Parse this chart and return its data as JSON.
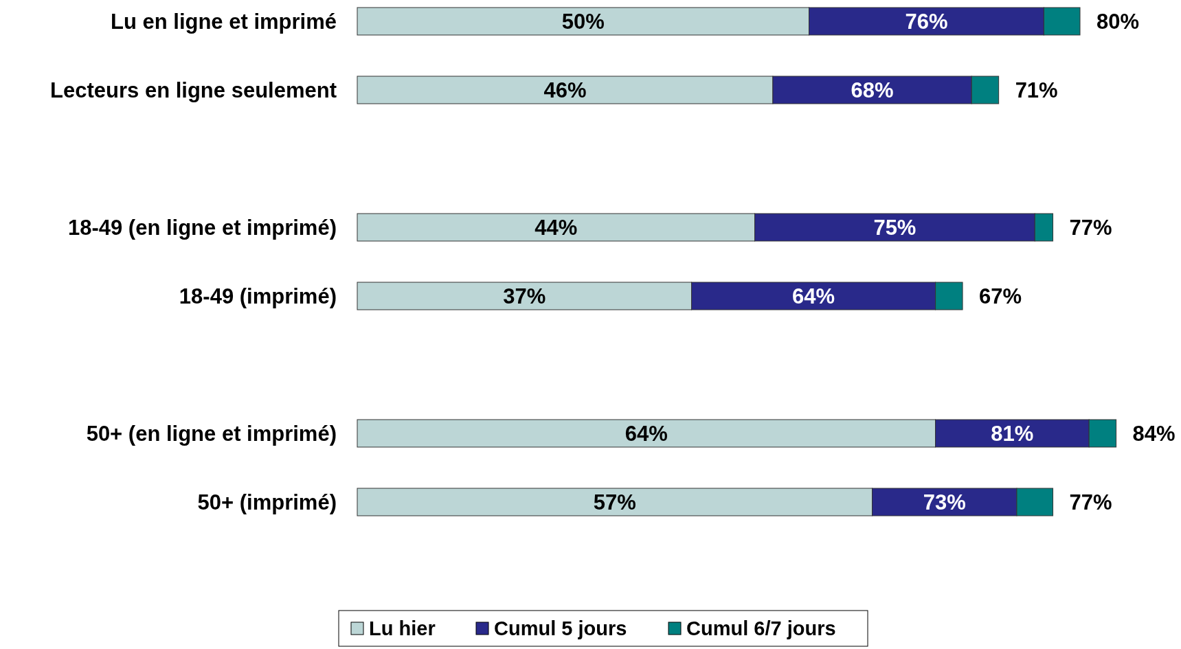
{
  "chart_data": {
    "type": "bar",
    "orientation": "horizontal",
    "stacked": true,
    "legend": "bottom",
    "categories": [
      "Lu en ligne et imprimé",
      "Lecteurs en ligne seulement",
      null,
      "18-49 (en ligne et imprimé)",
      "18-49 (imprimé)",
      null,
      "50+ (en ligne et imprimé)",
      "50+ (imprimé)"
    ],
    "series": [
      {
        "name": "Lu hier",
        "color": "#bcd6d6",
        "values": [
          50,
          46,
          null,
          44,
          37,
          null,
          64,
          57
        ],
        "value_labels": [
          "50%",
          "46%",
          null,
          "44%",
          "37%",
          null,
          "64%",
          "57%"
        ]
      },
      {
        "name": "Cumul 5 jours",
        "color": "#29298a",
        "values": [
          26,
          22,
          null,
          31,
          27,
          null,
          17,
          16
        ]
      },
      {
        "name": "Cumul 6/7 jours",
        "color": "#008080",
        "values": [
          4,
          3,
          null,
          2,
          3,
          null,
          3,
          4
        ]
      }
    ],
    "annotations": [
      "76%",
      "68%",
      "75%",
      "64%",
      "81%",
      "73%"
    ],
    "totals": [
      "80%",
      "71%",
      null,
      "77%",
      "67%",
      null,
      "84%",
      "77%"
    ]
  }
}
